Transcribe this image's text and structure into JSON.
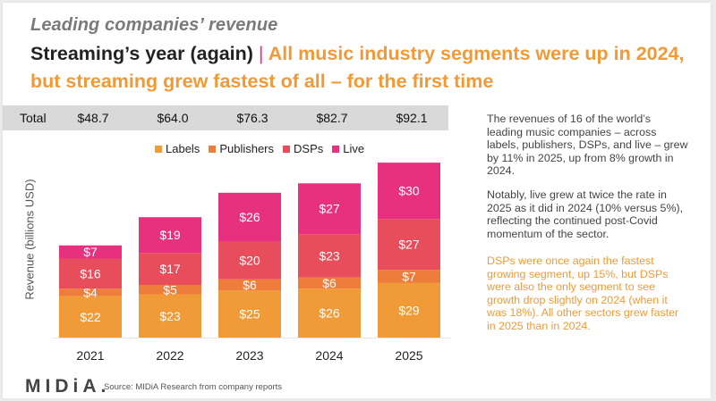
{
  "slide": {
    "kicker": "Leading companies’ revenue",
    "headline_lead": "Streaming’s year (again)",
    "headline_separator": "|",
    "headline_rest": "All music industry segments were up in 2024, but streaming grew fastest of all – for the first time"
  },
  "totals": {
    "label": "Total",
    "values": [
      "$48.7",
      "$64.0",
      "$76.3",
      "$82.7",
      "$92.1"
    ]
  },
  "commentary": {
    "paragraph_1": "The revenues of 16 of the world’s leading music companies – across labels, publishers, DSPs, and live – grew by 11% in 2025, up from 8% growth in 2024.",
    "paragraph_2": "Notably, live grew at twice the rate in 2025 as it did in 2024 (10% versus 5%), reflecting the continued post-Covid momentum of the sector.",
    "paragraph_3": "DSPs were once again the fastest growing segment, up 15%, but DSPs were also the only segment to see growth drop slightly on 2024 (when it was 18%). All other sectors grew faster in 2025 than in 2024."
  },
  "footer": {
    "logo_text": "MIDiA.",
    "source": "Source: MIDiA Research from company reports"
  },
  "chart_data": {
    "type": "bar",
    "stacked": true,
    "title": "Leading companies’ revenue",
    "xlabel": "",
    "ylabel": "Revenue (billions USD)",
    "categories": [
      "2021",
      "2022",
      "2023",
      "2024",
      "2025"
    ],
    "series": [
      {
        "name": "Labels",
        "color": "#f19a38",
        "values": [
          22,
          23,
          25,
          26,
          29
        ]
      },
      {
        "name": "Publishers",
        "color": "#ee7d3b",
        "values": [
          4,
          5,
          6,
          6,
          7
        ]
      },
      {
        "name": "DSPs",
        "color": "#e84d5b",
        "values": [
          16,
          17,
          20,
          23,
          27
        ]
      },
      {
        "name": "Live",
        "color": "#e8317e",
        "values": [
          7,
          19,
          26,
          27,
          30
        ]
      }
    ],
    "totals": [
      48.7,
      64.0,
      76.3,
      82.7,
      92.1
    ],
    "value_prefix": "$",
    "ylim": [
      0,
      95
    ],
    "grid": false,
    "legend": "top-center"
  }
}
